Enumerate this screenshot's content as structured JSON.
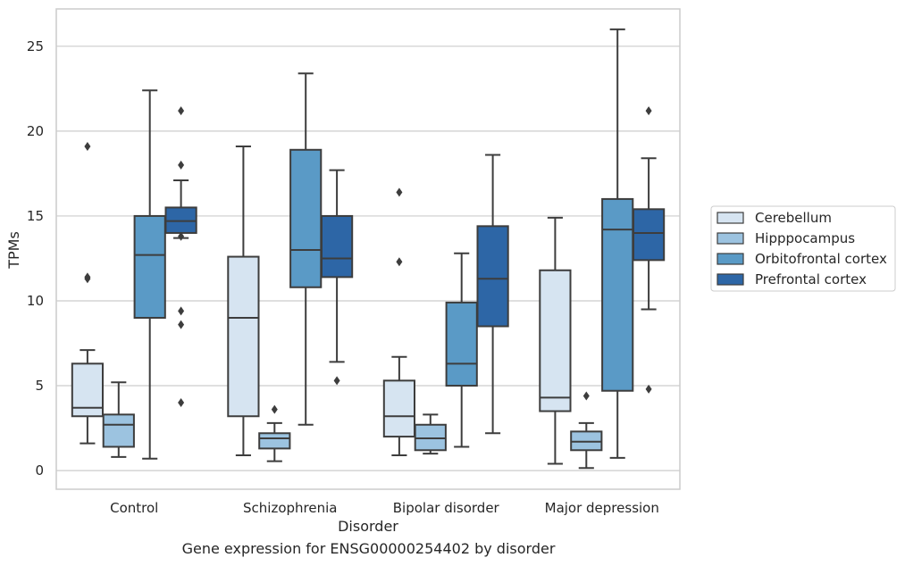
{
  "caption": "Gene expression for ENSG00000254402 by disorder",
  "chart_data": {
    "type": "box",
    "xlabel": "Disorder",
    "ylabel": "TPMs",
    "ylim": [
      -1.1,
      27.2
    ],
    "yticks": [
      0,
      5,
      10,
      15,
      20,
      25
    ],
    "grid": true,
    "legend_position": "right",
    "categories": [
      "Control",
      "Schizophrenia",
      "Bipolar disorder",
      "Major depression"
    ],
    "series": [
      {
        "name": "Cerebellum",
        "color": "#d6e4f1",
        "boxes": [
          {
            "whislo": 1.6,
            "q1": 3.2,
            "med": 3.7,
            "q3": 6.3,
            "whishi": 7.1,
            "fliers": [
              11.3,
              11.4,
              19.1
            ]
          },
          {
            "whislo": 0.9,
            "q1": 3.2,
            "med": 9.0,
            "q3": 12.6,
            "whishi": 19.1,
            "fliers": []
          },
          {
            "whislo": 0.9,
            "q1": 2.0,
            "med": 3.2,
            "q3": 5.3,
            "whishi": 6.7,
            "fliers": [
              12.3,
              16.4
            ]
          },
          {
            "whislo": 0.4,
            "q1": 3.5,
            "med": 4.3,
            "q3": 11.8,
            "whishi": 14.9,
            "fliers": []
          }
        ]
      },
      {
        "name": "Hipppocampus",
        "color": "#9cc3e0",
        "boxes": [
          {
            "whislo": 0.8,
            "q1": 1.4,
            "med": 2.7,
            "q3": 3.3,
            "whishi": 5.2,
            "fliers": []
          },
          {
            "whislo": 0.55,
            "q1": 1.3,
            "med": 1.9,
            "q3": 2.2,
            "whishi": 2.8,
            "fliers": [
              3.6
            ]
          },
          {
            "whislo": 1.0,
            "q1": 1.2,
            "med": 1.9,
            "q3": 2.7,
            "whishi": 3.3,
            "fliers": []
          },
          {
            "whislo": 0.15,
            "q1": 1.2,
            "med": 1.7,
            "q3": 2.3,
            "whishi": 2.8,
            "fliers": [
              4.4
            ]
          }
        ]
      },
      {
        "name": "Orbitofrontal cortex",
        "color": "#5a9ac6",
        "boxes": [
          {
            "whislo": 0.7,
            "q1": 9.0,
            "med": 12.7,
            "q3": 15.0,
            "whishi": 22.4,
            "fliers": []
          },
          {
            "whislo": 2.7,
            "q1": 10.8,
            "med": 13.0,
            "q3": 18.9,
            "whishi": 23.4,
            "fliers": []
          },
          {
            "whislo": 1.4,
            "q1": 5.0,
            "med": 6.3,
            "q3": 9.9,
            "whishi": 12.8,
            "fliers": []
          },
          {
            "whislo": 0.75,
            "q1": 4.7,
            "med": 14.2,
            "q3": 16.0,
            "whishi": 26.0,
            "fliers": []
          }
        ]
      },
      {
        "name": "Prefrontal cortex",
        "color": "#2d66a6",
        "boxes": [
          {
            "whislo": 13.7,
            "q1": 14.0,
            "med": 14.7,
            "q3": 15.5,
            "whishi": 17.1,
            "fliers": [
              4.0,
              8.6,
              9.4,
              13.8,
              18.0,
              21.2
            ]
          },
          {
            "whislo": 6.4,
            "q1": 11.4,
            "med": 12.5,
            "q3": 15.0,
            "whishi": 17.7,
            "fliers": [
              5.3
            ]
          },
          {
            "whislo": 2.2,
            "q1": 8.5,
            "med": 11.3,
            "q3": 14.4,
            "whishi": 18.6,
            "fliers": []
          },
          {
            "whislo": 9.5,
            "q1": 12.4,
            "med": 14.0,
            "q3": 15.4,
            "whishi": 18.4,
            "fliers": [
              4.8,
              21.2
            ]
          }
        ]
      }
    ]
  }
}
